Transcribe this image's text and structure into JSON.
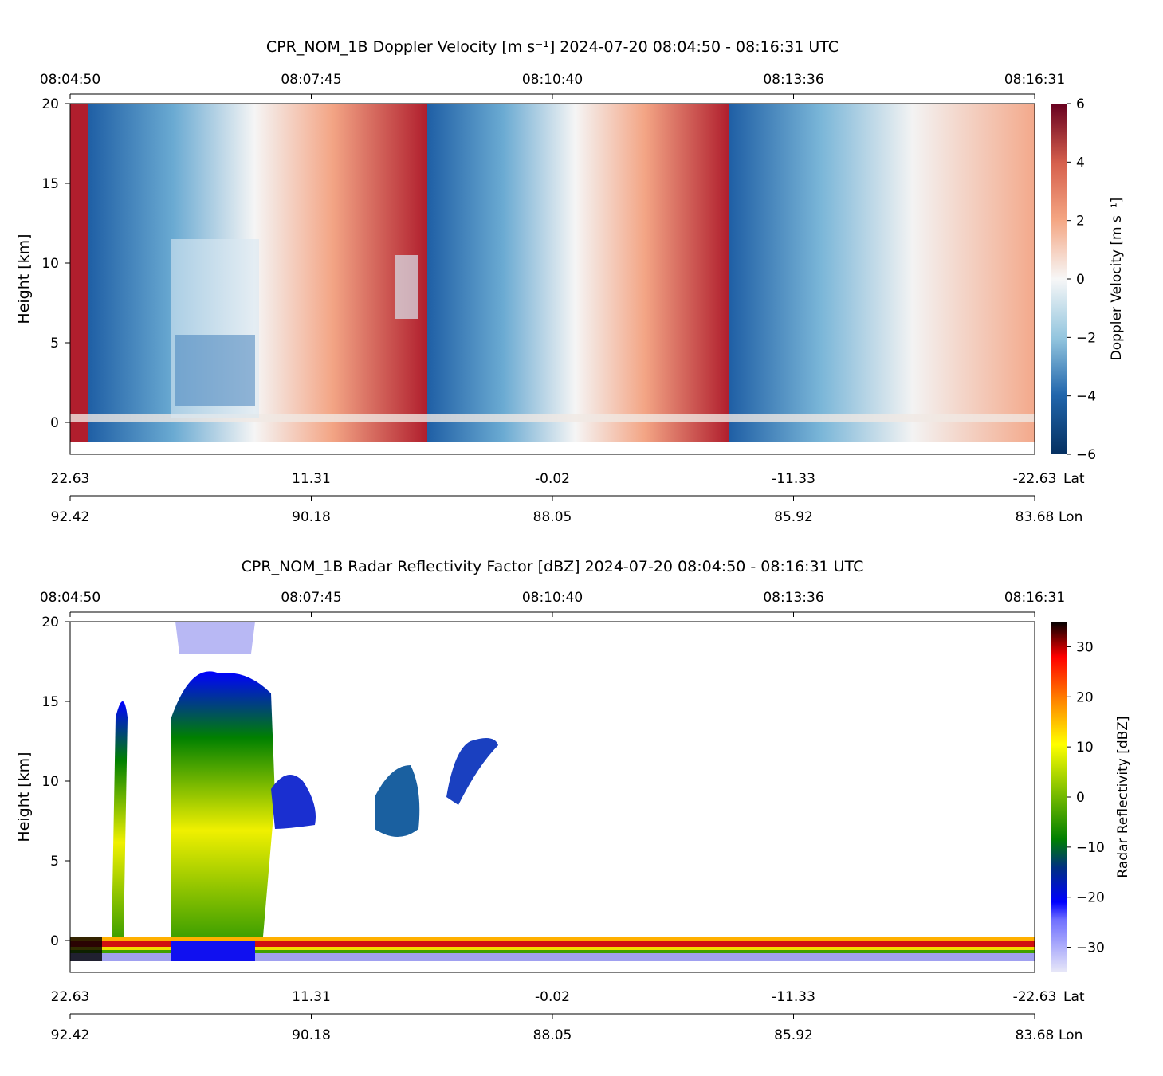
{
  "chart_data": [
    {
      "type": "heatmap",
      "title": "CPR_NOM_1B Doppler Velocity [m s⁻¹]    2024-07-20    08:04:50 - 08:16:31 UTC",
      "ylabel": "Height [km]",
      "ylim": [
        -2,
        20
      ],
      "yticks": [
        "0",
        "5",
        "10",
        "15",
        "20"
      ],
      "top_xticks": [
        "08:04:50",
        "08:07:45",
        "08:10:40",
        "08:13:36",
        "08:16:31"
      ],
      "lat_ticks": [
        "22.63",
        "11.31",
        "-0.02",
        "-11.33",
        "-22.63"
      ],
      "lat_label": "Lat",
      "lon_ticks": [
        "92.42",
        "90.18",
        "88.05",
        "85.92",
        "83.68"
      ],
      "lon_label": "Lon",
      "colorbar": {
        "label": "Doppler Velocity [m s⁻¹]",
        "range": [
          -6,
          6
        ],
        "ticks": [
          "−6",
          "−4",
          "−2",
          "0",
          "2",
          "4",
          "6"
        ],
        "colormap": "RdBu_r"
      }
    },
    {
      "type": "heatmap",
      "title": "CPR_NOM_1B Radar Reflectivity Factor [dBZ]    2024-07-20    08:04:50 - 08:16:31 UTC",
      "ylabel": "Height [km]",
      "ylim": [
        -2,
        20
      ],
      "yticks": [
        "0",
        "5",
        "10",
        "15",
        "20"
      ],
      "top_xticks": [
        "08:04:50",
        "08:07:45",
        "08:10:40",
        "08:13:36",
        "08:16:31"
      ],
      "lat_ticks": [
        "22.63",
        "11.31",
        "-0.02",
        "-11.33",
        "-22.63"
      ],
      "lat_label": "Lat",
      "lon_ticks": [
        "92.42",
        "90.18",
        "88.05",
        "85.92",
        "83.68"
      ],
      "lon_label": "Lon",
      "colorbar": {
        "label": "Radar Reflectivity [dBZ]",
        "range": [
          -35,
          35
        ],
        "ticks": [
          "−30",
          "−20",
          "−10",
          "0",
          "10",
          "20",
          "30"
        ],
        "colormap": "radar"
      }
    }
  ]
}
